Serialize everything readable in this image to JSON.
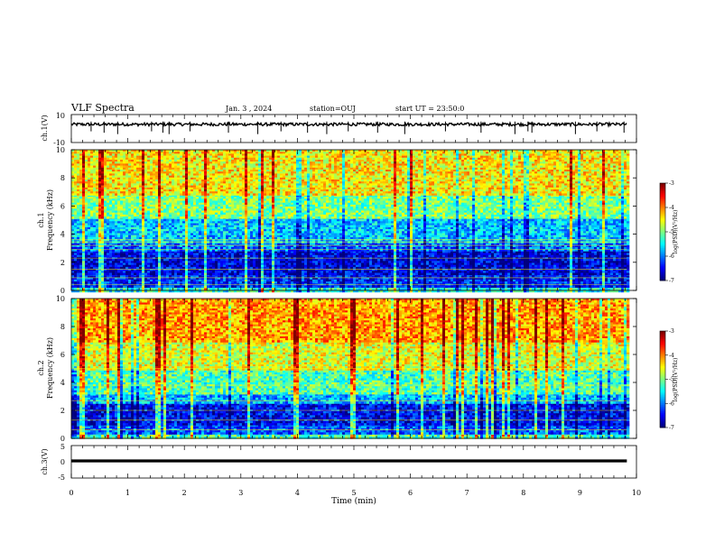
{
  "header": {
    "title": "VLF Spectra",
    "date": "Jan. 3 , 2024",
    "station": "station=OUJ",
    "start": "start UT = 23:50:0"
  },
  "chart_data": [
    {
      "type": "line",
      "panel": "waveform-ch1",
      "ylabel": "ch.1(V)",
      "ylim": [
        -10,
        10
      ],
      "yticks": [
        "10",
        "-10"
      ],
      "baseline_value": 3,
      "spike_times_min": [
        0.35,
        0.58,
        0.82,
        1.42,
        1.62,
        1.73,
        2.1,
        2.78,
        3.3,
        3.71,
        4.18,
        4.52,
        4.9,
        5.42,
        5.9,
        6.62,
        7.25,
        7.85,
        8.08,
        8.15,
        8.92,
        9.3,
        9.78
      ],
      "color": "#000000"
    },
    {
      "type": "heatmap",
      "panel": "spectrogram-ch1",
      "ylabel": "ch.1\nFrequency (kHz)",
      "ylim": [
        0,
        10
      ],
      "yticks": [
        "0",
        "2",
        "4",
        "6",
        "8",
        "10"
      ],
      "x_extent_min": [
        0,
        9.83
      ],
      "frequency_bands_khz": [
        {
          "from": 0,
          "to": 0.3,
          "level": 0.4
        },
        {
          "from": 0.3,
          "to": 1.2,
          "level": 0.15
        },
        {
          "from": 1.2,
          "to": 2.8,
          "level": 0.1
        },
        {
          "from": 2.8,
          "to": 3.5,
          "level": 0.22
        },
        {
          "from": 3.5,
          "to": 5.2,
          "level": 0.32
        },
        {
          "from": 5.2,
          "to": 6.8,
          "level": 0.5
        },
        {
          "from": 6.8,
          "to": 10,
          "level": 0.64
        }
      ],
      "horizontal_lines_khz": [
        0.4,
        0.9,
        1.5,
        2.3,
        2.9,
        3.2,
        3.45,
        3.6
      ],
      "colorbar": {
        "label": "log(PSD)(V²/Hz)",
        "min": -7,
        "max": -3,
        "ticks": [
          "-3",
          "-4",
          "-5",
          "-6",
          "-7"
        ]
      }
    },
    {
      "type": "heatmap",
      "panel": "spectrogram-ch2",
      "ylabel": "ch.2\nFrequency (kHz)",
      "ylim": [
        0,
        10
      ],
      "yticks": [
        "0",
        "2",
        "4",
        "6",
        "8",
        "10"
      ],
      "x_extent_min": [
        0,
        9.83
      ],
      "frequency_bands_khz": [
        {
          "from": 0,
          "to": 0.4,
          "level": 0.45
        },
        {
          "from": 0.4,
          "to": 1.0,
          "level": 0.2
        },
        {
          "from": 1.0,
          "to": 2.5,
          "level": 0.12
        },
        {
          "from": 2.5,
          "to": 3.2,
          "level": 0.3
        },
        {
          "from": 3.2,
          "to": 5.0,
          "level": 0.45
        },
        {
          "from": 5.0,
          "to": 7.0,
          "level": 0.6
        },
        {
          "from": 7.0,
          "to": 10,
          "level": 0.72
        }
      ],
      "horizontal_lines_khz": [
        0.6,
        1.3,
        2.0,
        2.7,
        3.8,
        5.0
      ],
      "colorbar": {
        "label": "log(PSD)(V²/Hz)",
        "min": -7,
        "max": -3,
        "ticks": [
          "-3",
          "-4",
          "-5",
          "-6",
          "-7"
        ]
      }
    },
    {
      "type": "line",
      "panel": "waveform-ch3",
      "ylabel": "ch.3(V)",
      "ylim": [
        -5,
        5
      ],
      "yticks": [
        "5",
        "0",
        "-5"
      ],
      "baseline_value": 0,
      "line_width_value": 0.9,
      "color": "#000000"
    }
  ],
  "x_axis": {
    "label": "Time (min)",
    "range": [
      0,
      10
    ],
    "ticks": [
      "0",
      "1",
      "2",
      "3",
      "4",
      "5",
      "6",
      "7",
      "8",
      "9",
      "10"
    ]
  },
  "colors": {
    "colormap": [
      "#00007f",
      "#0000ff",
      "#0080ff",
      "#00ffff",
      "#7fff7f",
      "#ffff00",
      "#ff8000",
      "#ff0000",
      "#7f0000"
    ],
    "line": "#000000"
  }
}
